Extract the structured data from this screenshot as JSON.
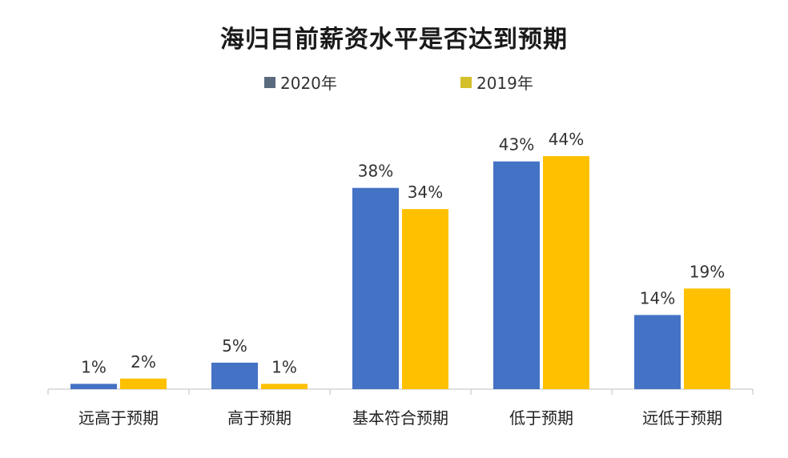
{
  "chart_data": {
    "type": "bar",
    "title": "海归目前薪资水平是否达到预期",
    "categories": [
      "远高于预期",
      "高于预期",
      "基本符合预期",
      "低于预期",
      "远低于预期"
    ],
    "series": [
      {
        "name": "2020年",
        "values": [
          1,
          5,
          38,
          43,
          14
        ],
        "labels": [
          "1%",
          "5%",
          "38%",
          "43%",
          "14%"
        ],
        "color": "#4472C4",
        "legend_color": "#5B6B7F"
      },
      {
        "name": "2019年",
        "values": [
          2,
          1,
          34,
          44,
          19
        ],
        "labels": [
          "2%",
          "1%",
          "34%",
          "44%",
          "19%"
        ],
        "color": "#FFC000",
        "legend_color": "#D4C02A"
      }
    ],
    "ylim": [
      0,
      48
    ],
    "xlabel": "",
    "ylabel": "",
    "grid": false,
    "legend_position": "top"
  }
}
